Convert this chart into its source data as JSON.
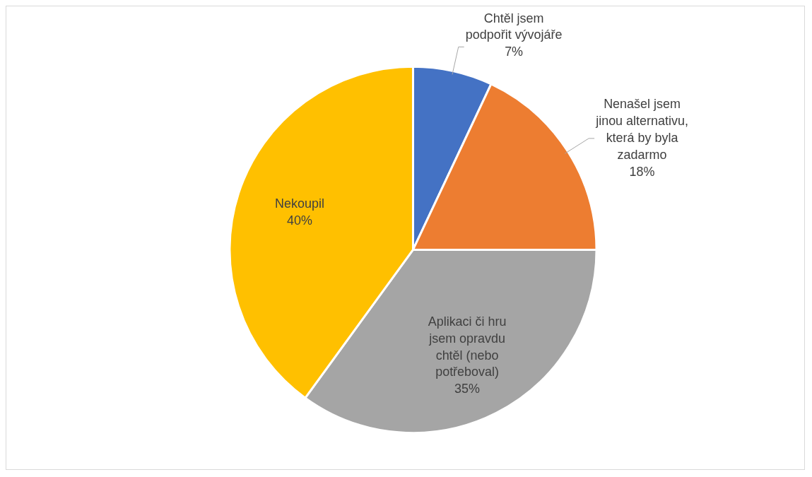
{
  "chart_data": {
    "type": "pie",
    "categories": [
      "Chtěl jsem podpořit vývojáře",
      "Nenašel jsem jinou alternativu, která by byla zadarmo",
      "Aplikaci či hru jsem opravdu chtěl (nebo potřeboval)",
      "Nekoupil"
    ],
    "values": [
      7,
      18,
      35,
      40
    ],
    "colors": [
      "#4472c4",
      "#ed7d31",
      "#a5a5a5",
      "#ffc000"
    ],
    "value_labels": [
      "7%",
      "18%",
      "35%",
      "40%"
    ],
    "legend": false
  }
}
